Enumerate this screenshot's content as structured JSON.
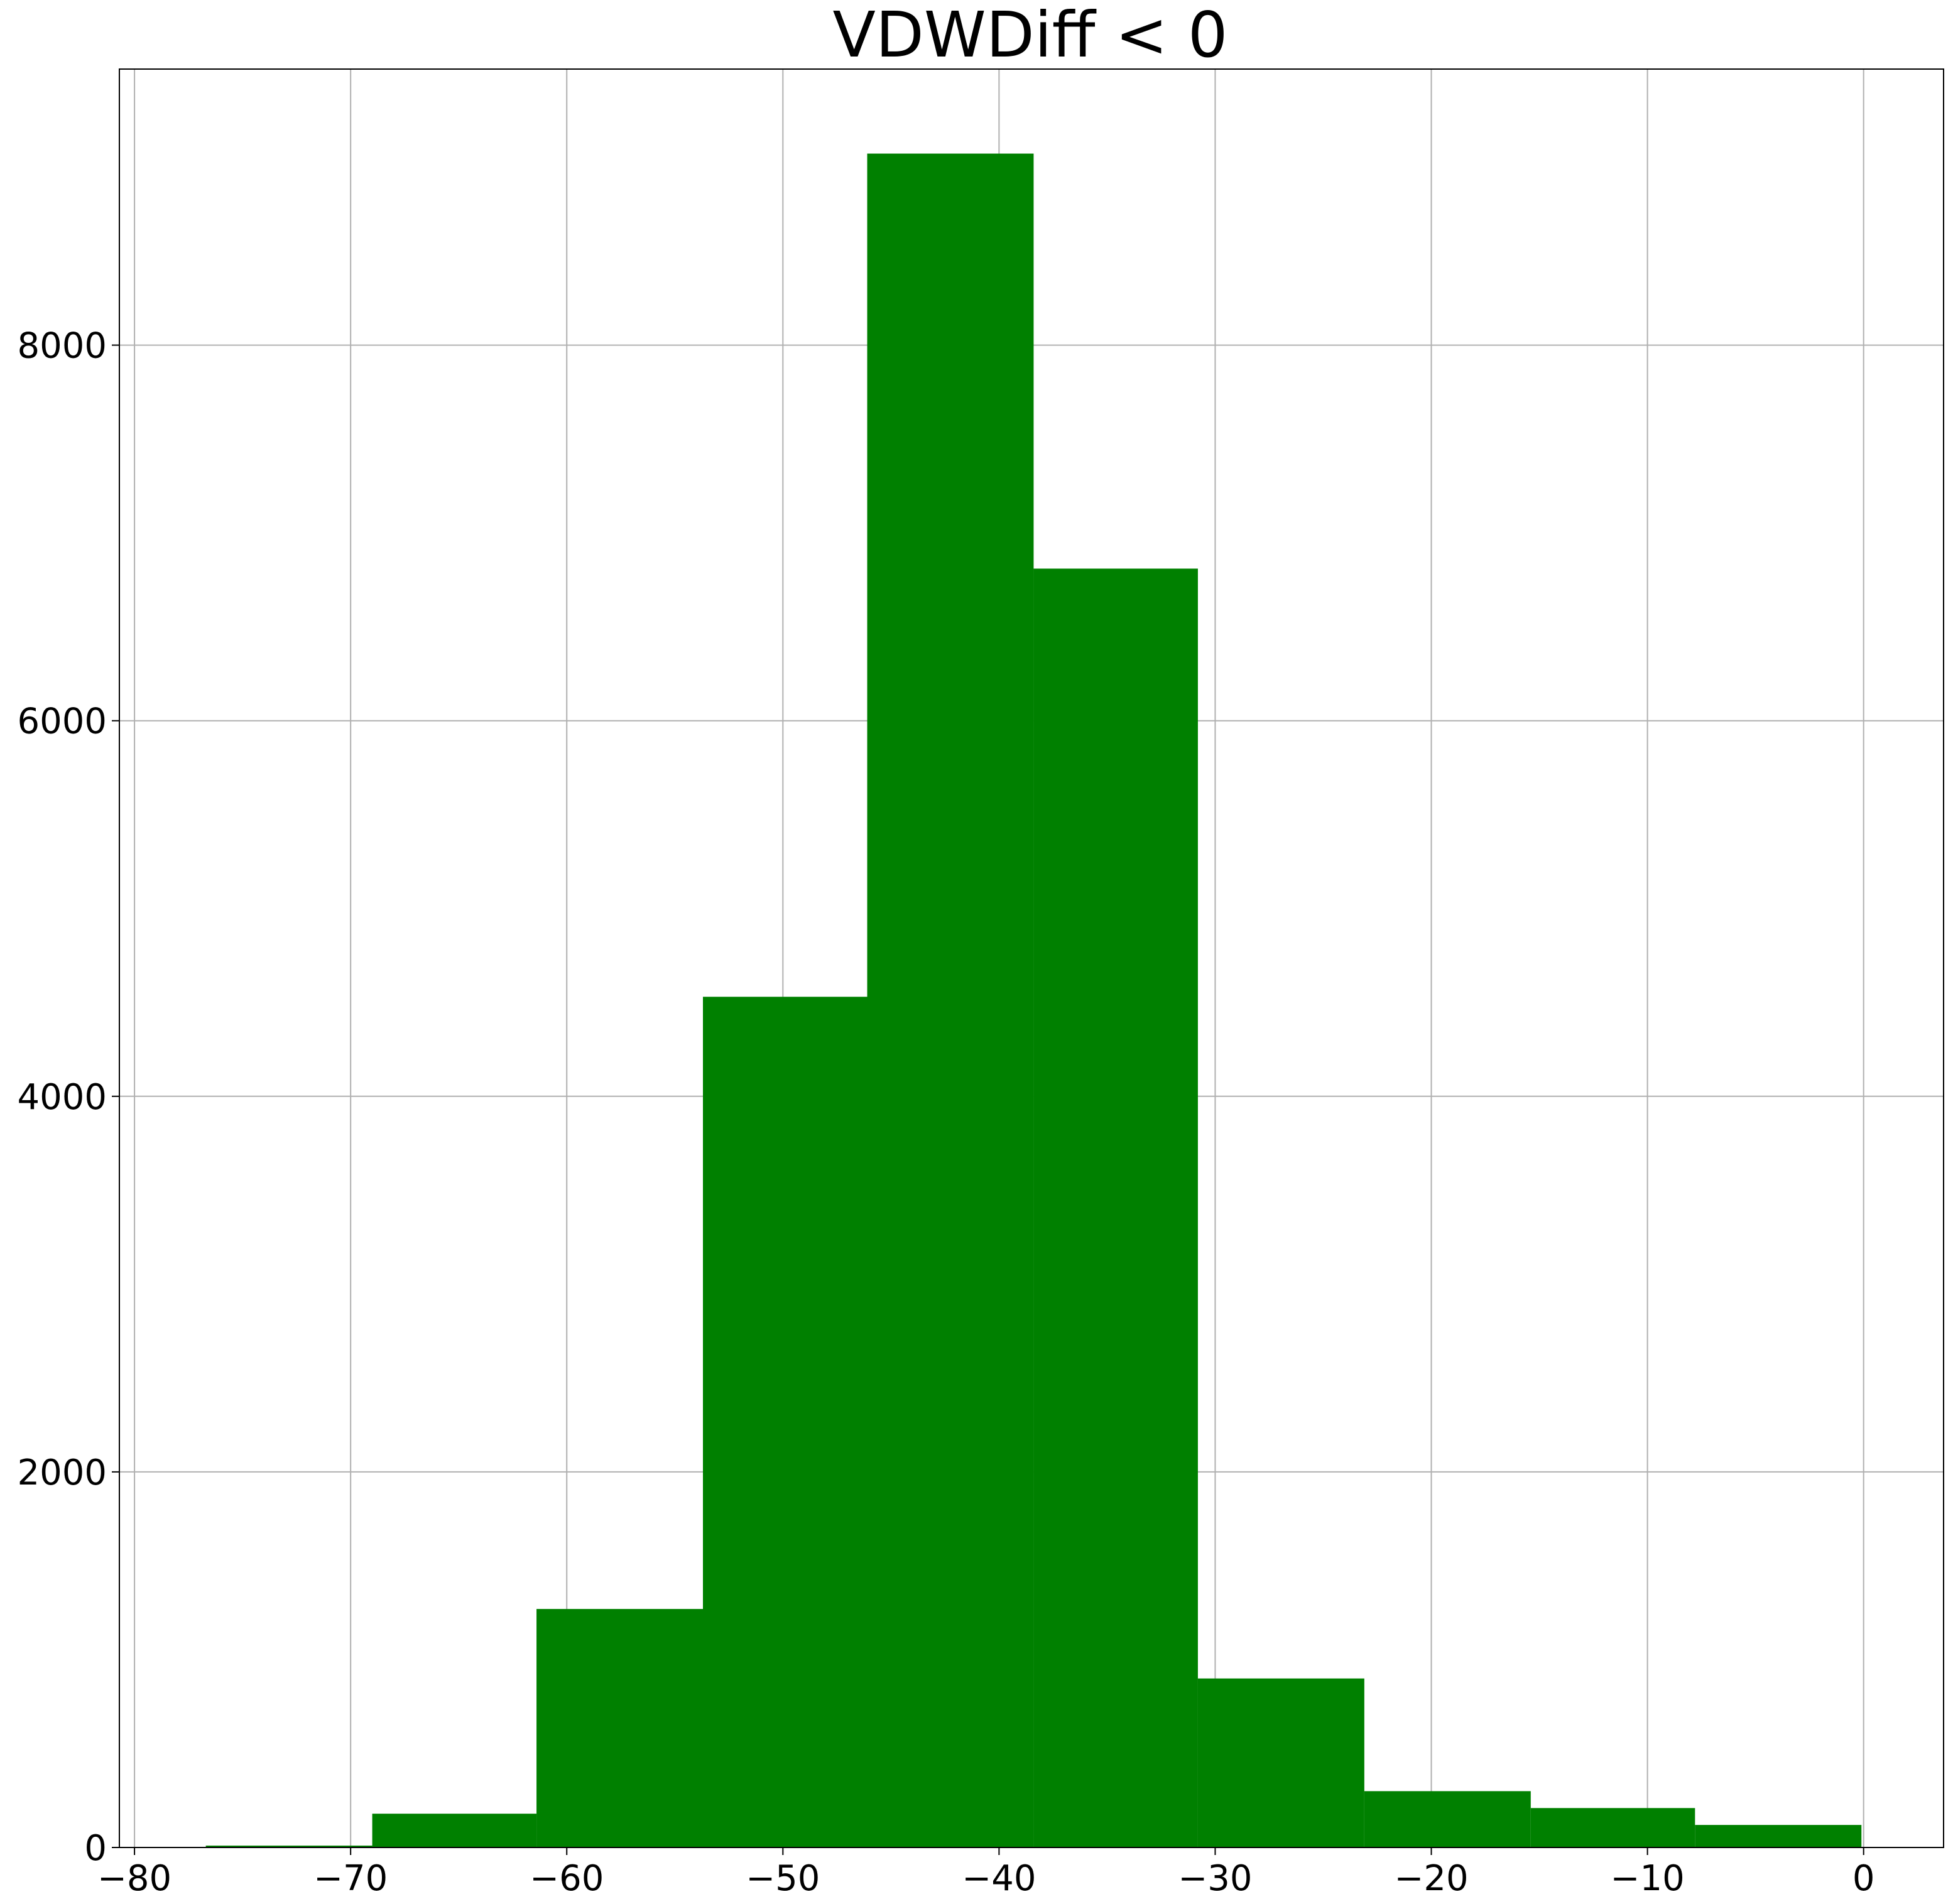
{
  "chart_data": {
    "type": "bar",
    "title": "VDWDiff < 0",
    "xlabel": "",
    "ylabel": "",
    "bar_color": "#008000",
    "grid": true,
    "bins": [
      {
        "x0": -76.7,
        "x1": -69.0,
        "count": 10
      },
      {
        "x0": -69.0,
        "x1": -61.4,
        "count": 180
      },
      {
        "x0": -61.4,
        "x1": -53.7,
        "count": 1270
      },
      {
        "x0": -53.7,
        "x1": -46.1,
        "count": 4530
      },
      {
        "x0": -46.1,
        "x1": -38.4,
        "count": 9020
      },
      {
        "x0": -38.4,
        "x1": -30.8,
        "count": 6810
      },
      {
        "x0": -30.8,
        "x1": -23.1,
        "count": 900
      },
      {
        "x0": -23.1,
        "x1": -15.4,
        "count": 300
      },
      {
        "x0": -15.4,
        "x1": -7.8,
        "count": 210
      },
      {
        "x0": -7.8,
        "x1": -0.1,
        "count": 120
      }
    ],
    "xlim": [
      -80.7,
      3.7
    ],
    "ylim": [
      0,
      9470
    ],
    "xticks": [
      -80,
      -70,
      -60,
      -50,
      -40,
      -30,
      -20,
      -10,
      0
    ],
    "xtick_labels": [
      "−80",
      "−70",
      "−60",
      "−50",
      "−40",
      "−30",
      "−20",
      "−10",
      "0"
    ],
    "yticks": [
      0,
      2000,
      4000,
      6000,
      8000
    ],
    "ytick_labels": [
      "0",
      "2000",
      "4000",
      "6000",
      "8000"
    ]
  }
}
